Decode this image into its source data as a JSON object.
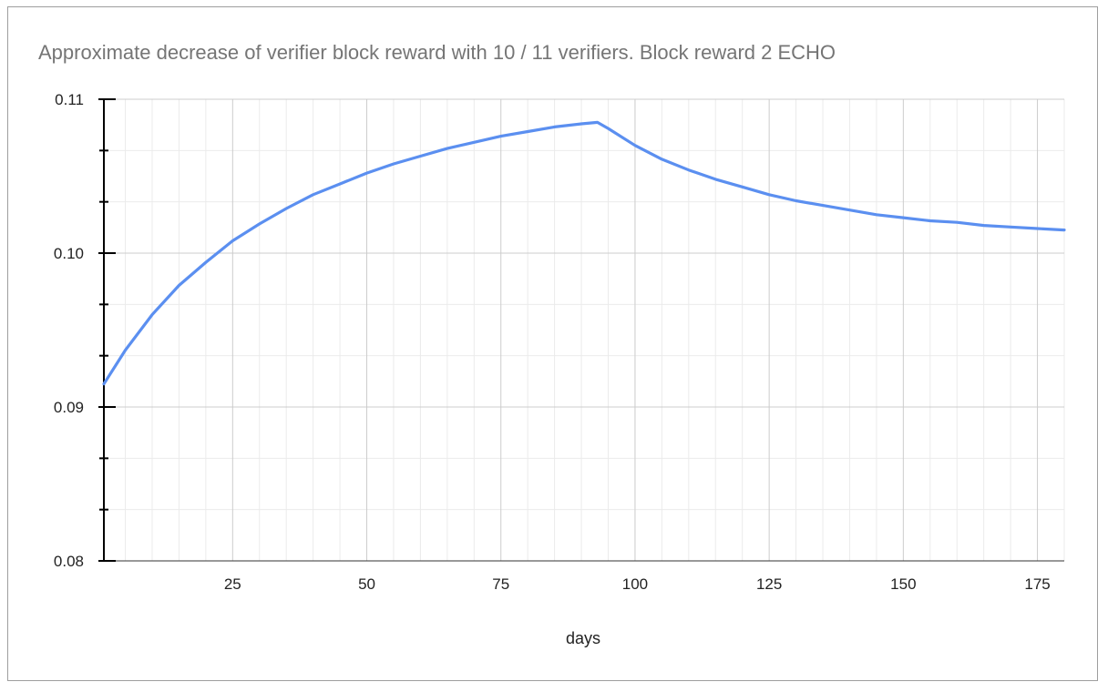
{
  "chart_data": {
    "type": "line",
    "title": "Approximate decrease of verifier block reward with 10 / 11 verifiers. Block reward 2 ECHO",
    "xlabel": "days",
    "ylabel": "",
    "xlim": [
      1,
      180
    ],
    "ylim": [
      0.08,
      0.11
    ],
    "x_ticks": [
      25,
      50,
      75,
      100,
      125,
      150,
      175
    ],
    "x_tick_labels": [
      "25",
      "50",
      "75",
      "100",
      "125",
      "150",
      "175"
    ],
    "y_ticks": [
      0.08,
      0.09,
      0.1,
      0.11
    ],
    "y_tick_labels": [
      "0.08",
      "0.09",
      "0.10",
      "0.11"
    ],
    "grid": true,
    "legend": "none",
    "series": [
      {
        "color": "#5b8ff0",
        "x": [
          1,
          5,
          10,
          15,
          20,
          25,
          30,
          35,
          40,
          45,
          50,
          55,
          60,
          65,
          70,
          75,
          80,
          85,
          90,
          93,
          95,
          100,
          105,
          110,
          115,
          120,
          125,
          130,
          135,
          140,
          145,
          150,
          155,
          160,
          165,
          170,
          175,
          180
        ],
        "y": [
          0.0915,
          0.0937,
          0.096,
          0.0979,
          0.0994,
          0.1008,
          0.1019,
          0.1029,
          0.1038,
          0.1045,
          0.1052,
          0.1058,
          0.1063,
          0.1068,
          0.1072,
          0.1076,
          0.1079,
          0.1082,
          0.1084,
          0.1085,
          0.1081,
          0.107,
          0.1061,
          0.1054,
          0.1048,
          0.1043,
          0.1038,
          0.1034,
          0.1031,
          0.1028,
          0.1025,
          0.1023,
          0.1021,
          0.102,
          0.1018,
          0.1017,
          0.1016,
          0.1015
        ]
      }
    ]
  }
}
